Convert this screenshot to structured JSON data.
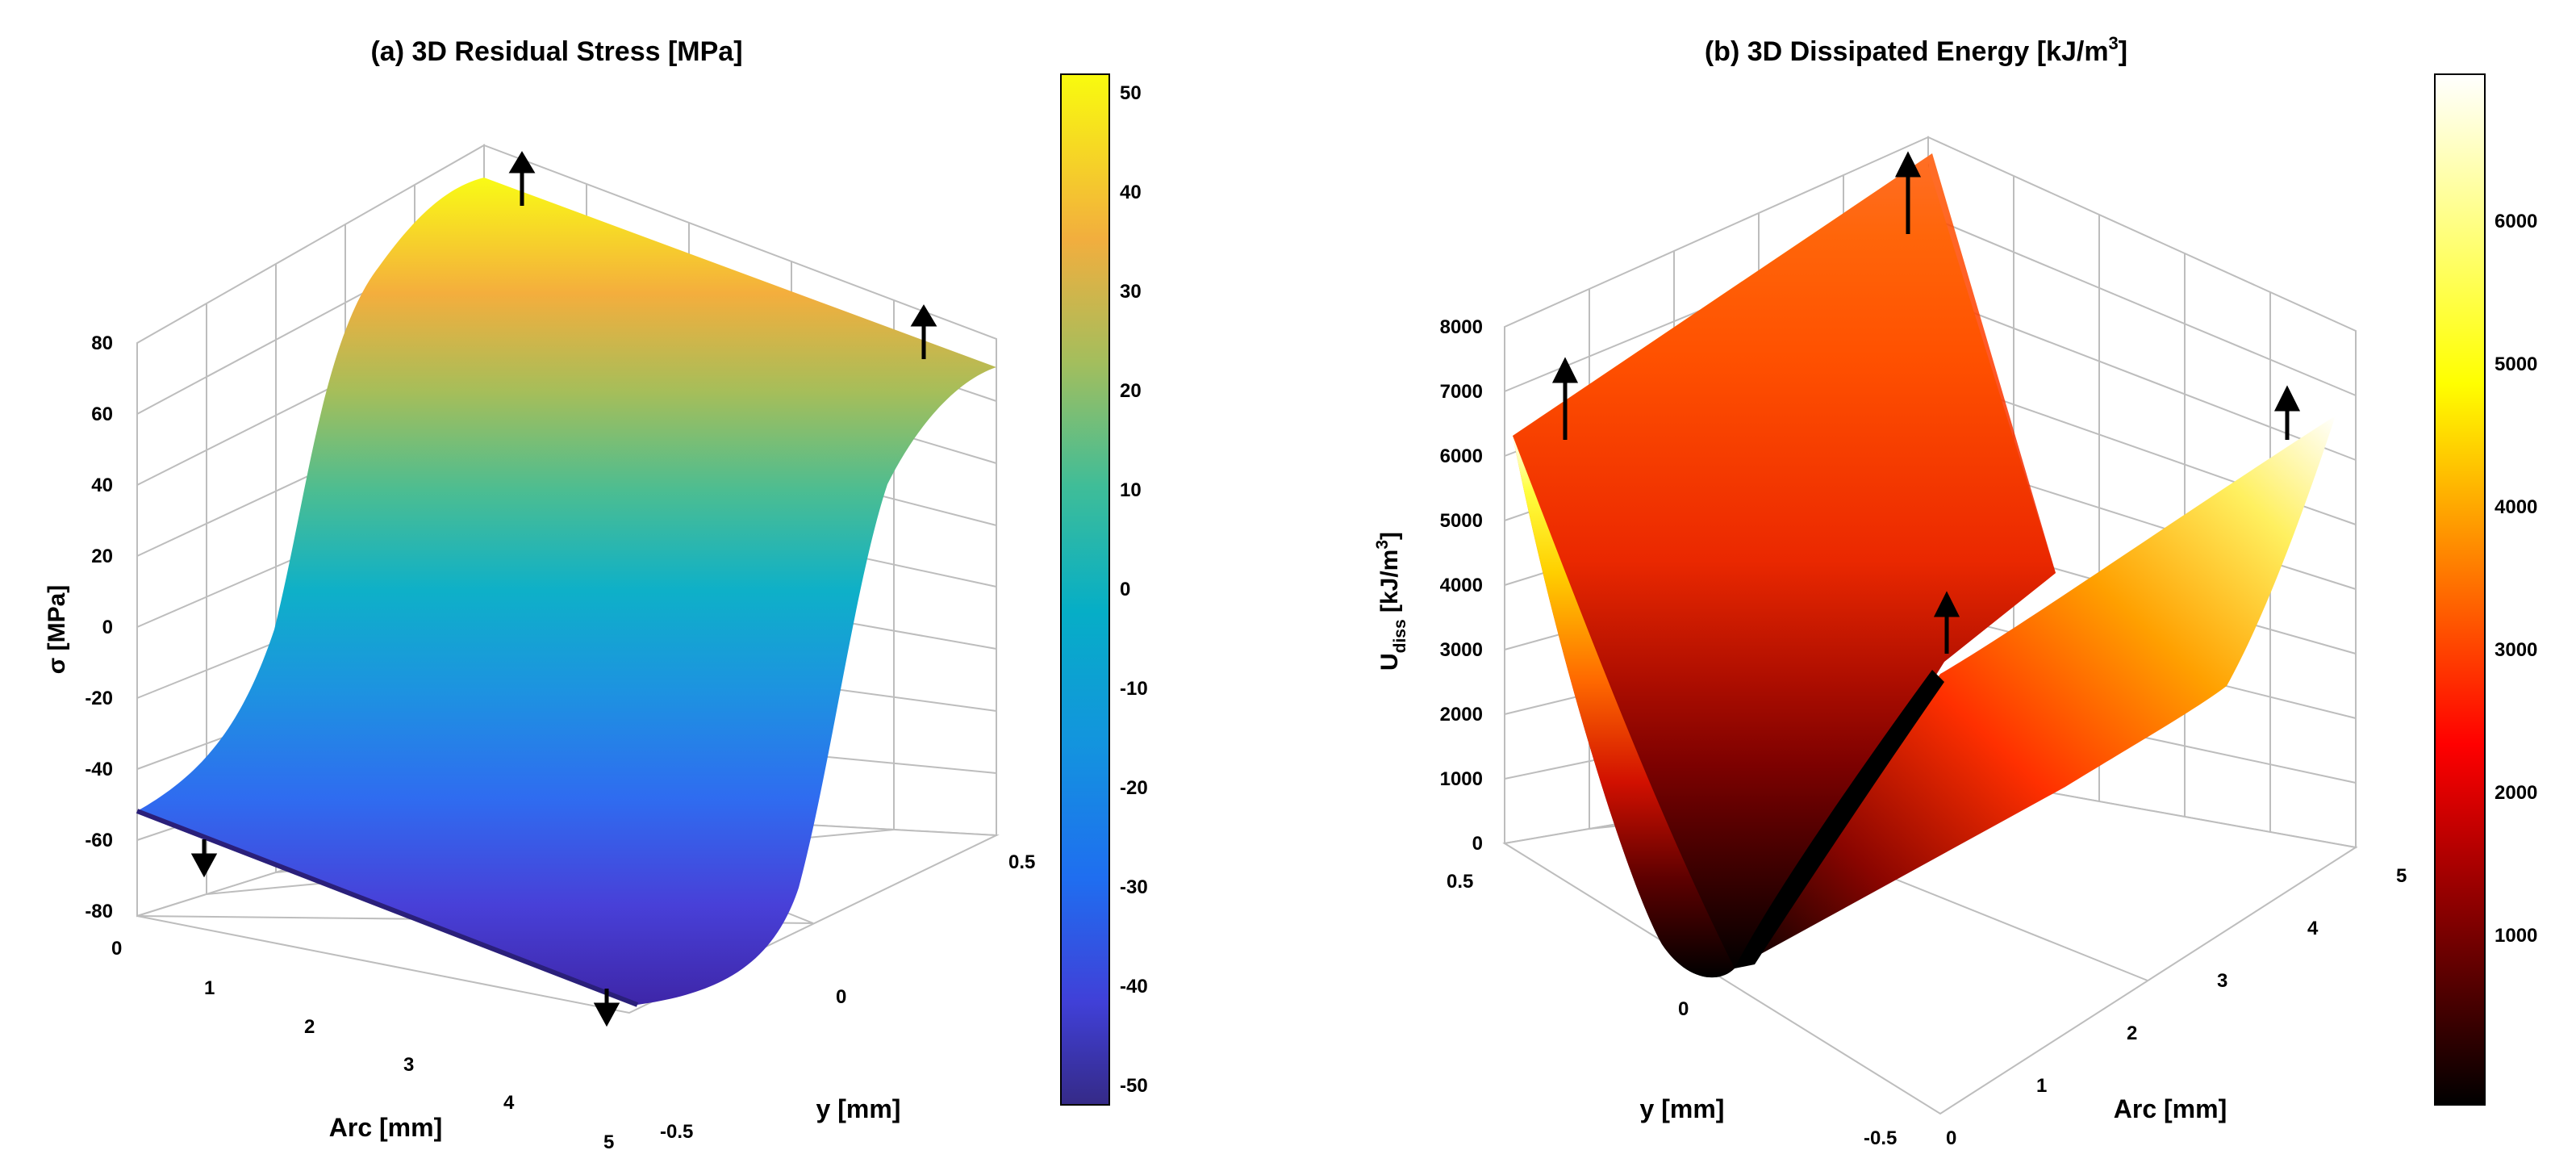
{
  "chart_data": [
    {
      "type": "surface3d",
      "title": "(a) 3D Residual Stress [MPa]",
      "zlabel": "σ [MPa]",
      "xlabel": "Arc [mm]",
      "ylabel": "y [mm]",
      "zticks": [
        "80",
        "60",
        "40",
        "20",
        "0",
        "-20",
        "-40",
        "-60",
        "-80"
      ],
      "xticks": [
        "0",
        "1",
        "2",
        "3",
        "4",
        "5"
      ],
      "yticks": [
        "0.5",
        "0",
        "-0.5"
      ],
      "colorbar": {
        "colormap": "parula",
        "range": [
          -52,
          52
        ],
        "ticks": [
          "50",
          "40",
          "30",
          "20",
          "10",
          "0",
          "-10",
          "-20",
          "-30",
          "-40",
          "-50"
        ]
      },
      "surface_profile": {
        "y": [
          -0.5,
          -0.4,
          -0.3,
          -0.2,
          -0.1,
          0,
          0.1,
          0.2,
          0.3,
          0.4,
          0.5
        ],
        "sigma": [
          -52,
          -50,
          -44,
          -32,
          -17,
          0,
          17,
          32,
          44,
          50,
          52
        ],
        "note_extent_arc": [
          0,
          5
        ]
      },
      "grid": true,
      "arrows": [
        "up",
        "up",
        "down",
        "down"
      ]
    },
    {
      "type": "surface3d",
      "title": "(b) 3D Dissipated Energy [kJ/m",
      "title_sup": "3",
      "title_end": "]",
      "zlabel_main": "U",
      "zlabel_sub": "diss",
      "zlabel_unit": " [kJ/m",
      "zlabel_sup": "3",
      "zlabel_end": "]",
      "xlabel": "y [mm]",
      "ylabel": "Arc [mm]",
      "zticks": [
        "8000",
        "7000",
        "6000",
        "5000",
        "4000",
        "3000",
        "2000",
        "1000",
        "0"
      ],
      "xticks": [
        "0.5",
        "0",
        "-0.5"
      ],
      "yticks": [
        "0",
        "1",
        "2",
        "3",
        "4",
        "5"
      ],
      "colorbar": {
        "colormap": "hot",
        "range": [
          0,
          6900
        ],
        "ticks": [
          "6000",
          "5000",
          "4000",
          "3000",
          "2000",
          "1000"
        ]
      },
      "surface_profile": {
        "y": [
          -0.5,
          -0.4,
          -0.3,
          -0.2,
          -0.1,
          0,
          0.1,
          0.2,
          0.3,
          0.4,
          0.5
        ],
        "u_diss": [
          6900,
          4400,
          2500,
          1100,
          280,
          0,
          280,
          1100,
          2500,
          4400,
          6900
        ],
        "note_extent_arc": [
          0,
          5
        ]
      },
      "grid": true,
      "arrows": [
        "up",
        "up",
        "up",
        "up"
      ]
    }
  ]
}
